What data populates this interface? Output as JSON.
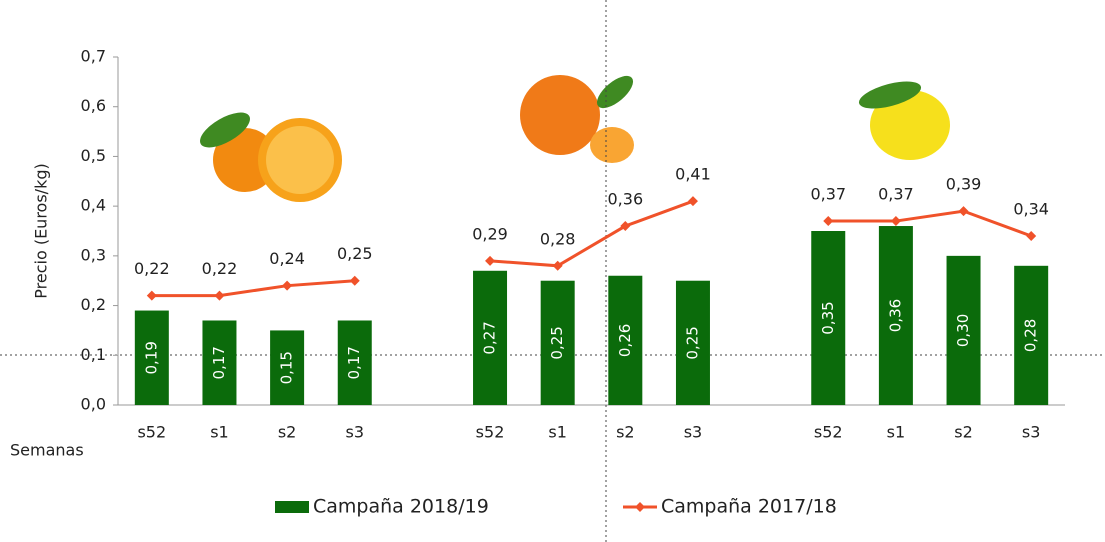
{
  "chart_data": {
    "type": "bar",
    "y_label": "Precio (Euros/kg)",
    "x_label": "Semanas",
    "categories": [
      "s52",
      "s1",
      "s2",
      "s3",
      null,
      "s52",
      "s1",
      "s2",
      "s3",
      null,
      "s52",
      "s1",
      "s2",
      "s3"
    ],
    "series": [
      {
        "name": "Campaña 2018/19",
        "type": "bar",
        "color": "#0b6b0b",
        "values": [
          0.19,
          0.17,
          0.15,
          0.17,
          null,
          0.27,
          0.25,
          0.26,
          0.25,
          null,
          0.35,
          0.36,
          0.3,
          0.28
        ],
        "value_labels": [
          "0,19",
          "0,17",
          "0,15",
          "0,17",
          null,
          "0,27",
          "0,25",
          "0,26",
          "0,25",
          null,
          "0,35",
          "0,36",
          "0,30",
          "0,28"
        ]
      },
      {
        "name": "Campaña 2017/18",
        "type": "line",
        "color": "#f0522a",
        "values": [
          0.22,
          0.22,
          0.24,
          0.25,
          null,
          0.29,
          0.28,
          0.36,
          0.41,
          null,
          0.37,
          0.37,
          0.39,
          0.34
        ],
        "value_labels": [
          "0,22",
          "0,22",
          "0,24",
          "0,25",
          null,
          "0,29",
          "0,28",
          "0,36",
          "0,41",
          null,
          "0,37",
          "0,37",
          "0,39",
          "0,34"
        ]
      }
    ],
    "ylim": [
      0,
      0.7
    ],
    "yticks": [
      {
        "value": 0,
        "label": "0,0"
      },
      {
        "value": 0.1,
        "label": "0,1"
      },
      {
        "value": 0.2,
        "label": "0,2"
      },
      {
        "value": 0.3,
        "label": "0,3"
      },
      {
        "value": 0.4,
        "label": "0,4"
      },
      {
        "value": 0.5,
        "label": "0,5"
      },
      {
        "value": 0.6,
        "label": "0,6"
      },
      {
        "value": 0.7,
        "label": "0,7"
      }
    ],
    "grid": false
  }
}
